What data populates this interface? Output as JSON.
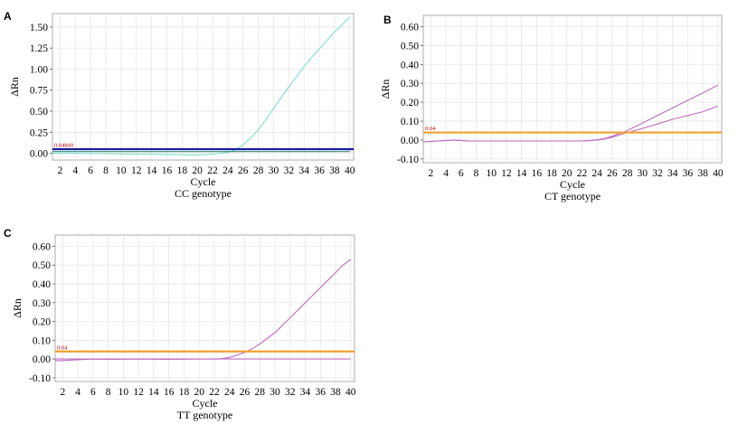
{
  "charts": [
    {
      "panel": "A",
      "x_label": "Cycle",
      "y_label": "ΔRn",
      "genotype_caption": "CC genotype",
      "x_ticks": [
        "2",
        "4",
        "6",
        "8",
        "10",
        "12",
        "14",
        "16",
        "18",
        "20",
        "22",
        "24",
        "26",
        "28",
        "30",
        "32",
        "34",
        "36",
        "38",
        "40"
      ],
      "y_ticks": [
        "0.00",
        "0.25",
        "0.50",
        "0.75",
        "1.00",
        "1.25",
        "1.50"
      ],
      "threshold_label": "0.04849"
    },
    {
      "panel": "B",
      "x_label": "Cycle",
      "y_label": "ΔRn",
      "genotype_caption": "CT genotype",
      "x_ticks": [
        "2",
        "4",
        "6",
        "8",
        "10",
        "12",
        "14",
        "16",
        "18",
        "20",
        "22",
        "24",
        "26",
        "28",
        "30",
        "32",
        "34",
        "36",
        "38",
        "40"
      ],
      "y_ticks": [
        "-0.10",
        "0.00",
        "0.10",
        "0.20",
        "0.30",
        "0.40",
        "0.50",
        "0.60"
      ],
      "threshold_label": "0.04"
    },
    {
      "panel": "C",
      "x_label": "Cycle",
      "y_label": "ΔRn",
      "genotype_caption": "TT genotype",
      "x_ticks": [
        "2",
        "4",
        "6",
        "8",
        "10",
        "12",
        "14",
        "16",
        "18",
        "20",
        "22",
        "24",
        "26",
        "28",
        "30",
        "32",
        "34",
        "36",
        "38",
        "40"
      ],
      "y_ticks": [
        "-0.10",
        "0.00",
        "0.10",
        "0.20",
        "0.30",
        "0.40",
        "0.50",
        "0.60"
      ],
      "threshold_label": "0.04"
    }
  ],
  "chart_data": [
    {
      "type": "line",
      "xlim": [
        1,
        40.5
      ],
      "ylim": [
        -0.08,
        1.66
      ],
      "grid": true,
      "threshold": 0.04849,
      "threshold_color": "#1a1a9e",
      "series": [
        {
          "color": "#7fe0cc",
          "x": [
            1,
            4,
            8,
            12,
            16,
            20,
            22,
            24,
            25,
            26,
            27,
            28,
            29,
            30,
            31,
            32,
            33,
            34,
            35,
            36,
            37,
            38,
            39,
            40
          ],
          "y": [
            0.0,
            0.0,
            -0.005,
            -0.01,
            -0.015,
            -0.02,
            -0.01,
            0.01,
            0.04,
            0.1,
            0.18,
            0.28,
            0.4,
            0.53,
            0.66,
            0.79,
            0.91,
            1.03,
            1.14,
            1.24,
            1.34,
            1.44,
            1.53,
            1.62
          ]
        },
        {
          "color": "#2e8b7a",
          "x": [
            1,
            10,
            20,
            30,
            40
          ],
          "y": [
            0.02,
            0.02,
            0.02,
            0.02,
            0.02
          ]
        }
      ]
    },
    {
      "type": "line",
      "xlim": [
        1,
        40.5
      ],
      "ylim": [
        -0.12,
        0.66
      ],
      "grid": true,
      "threshold": 0.04,
      "threshold_color": "#f0a030",
      "series": [
        {
          "color": "#c06cc0",
          "x": [
            1,
            3,
            5,
            7,
            10,
            14,
            18,
            20,
            22,
            23,
            24,
            25,
            26,
            27,
            28,
            29,
            30,
            32,
            34,
            36,
            38,
            40
          ],
          "y": [
            -0.01,
            -0.005,
            0.0,
            -0.005,
            -0.005,
            -0.005,
            -0.005,
            -0.005,
            -0.005,
            -0.003,
            0.002,
            0.008,
            0.02,
            0.035,
            0.05,
            0.07,
            0.09,
            0.13,
            0.17,
            0.21,
            0.25,
            0.29
          ]
        },
        {
          "color": "#c06cc0",
          "x": [
            1,
            3,
            5,
            7,
            10,
            14,
            18,
            20,
            22,
            24,
            25,
            26,
            27,
            28,
            29,
            30,
            32,
            34,
            36,
            38,
            40
          ],
          "y": [
            -0.01,
            -0.005,
            0.0,
            -0.005,
            -0.005,
            -0.005,
            -0.005,
            -0.005,
            -0.005,
            0.0,
            0.006,
            0.015,
            0.028,
            0.04,
            0.05,
            0.062,
            0.085,
            0.11,
            0.13,
            0.15,
            0.18
          ]
        }
      ]
    },
    {
      "type": "line",
      "xlim": [
        1,
        40.5
      ],
      "ylim": [
        -0.12,
        0.66
      ],
      "grid": true,
      "threshold": 0.04,
      "threshold_color": "#f0a030",
      "series": [
        {
          "color": "#c06cc0",
          "x": [
            1,
            4,
            8,
            12,
            16,
            20,
            22,
            23,
            24,
            25,
            26,
            27,
            28,
            29,
            30,
            31,
            32,
            33,
            34,
            35,
            36,
            37,
            38,
            39,
            40
          ],
          "y": [
            0.0,
            0.0,
            -0.002,
            0.0,
            -0.002,
            0.0,
            0.0,
            0.002,
            0.008,
            0.02,
            0.035,
            0.055,
            0.08,
            0.11,
            0.14,
            0.18,
            0.22,
            0.26,
            0.3,
            0.34,
            0.38,
            0.42,
            0.46,
            0.5,
            0.53
          ]
        },
        {
          "color": "#c06cc0",
          "x": [
            1,
            6,
            12,
            20,
            30,
            40
          ],
          "y": [
            -0.01,
            0.0,
            0.0,
            0.0,
            0.0,
            0.0
          ]
        }
      ]
    }
  ]
}
